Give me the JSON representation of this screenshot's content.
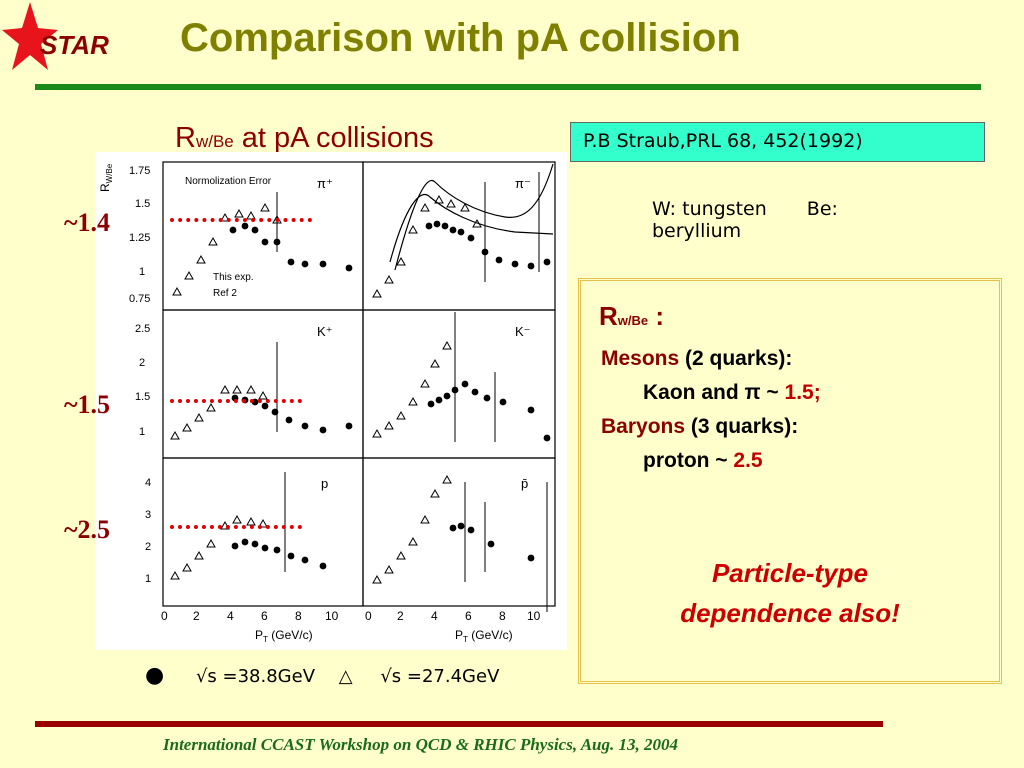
{
  "header": {
    "logo_text": "STAR",
    "title": "Comparison with pA collision"
  },
  "figure": {
    "caption_main": "R",
    "caption_sub": "w/Be",
    "caption_rest": " at pA collisions",
    "reference": "P.B Straub,PRL 68, 452(1992)",
    "ratio_labels": [
      "~1.4",
      "~1.5",
      "~2.5"
    ],
    "panel_labels": [
      "π⁺",
      "π⁻",
      "K⁺",
      "K⁻",
      "p",
      "p̄"
    ],
    "panel_legend": [
      "Normolization Error",
      "This exp.",
      "Ref 2"
    ],
    "y_axis_label": "R",
    "y_axis_sub": "W/Be",
    "x_axis_label": "P",
    "x_axis_sub": "T",
    "x_axis_unit": " (GeV/c)",
    "x_ticks": [
      "0",
      "2",
      "4",
      "6",
      "8",
      "10"
    ],
    "y_ticks_pi": [
      "0.75",
      "1",
      "1.25",
      "1.5",
      "1.75"
    ],
    "y_ticks_k": [
      "1",
      "1.5",
      "2",
      "2.5"
    ],
    "y_ticks_p": [
      "1",
      "2",
      "3",
      "4"
    ]
  },
  "elements_note": {
    "w": "W: tungsten",
    "be": "Be:",
    "be_name": "beryllium"
  },
  "legend": {
    "filled_marker": "●",
    "filled_label": "√s =38.8GeV",
    "open_marker": "△",
    "open_label": "√s =27.4GeV"
  },
  "summary": {
    "r_main": "R",
    "r_sub": "w/Be",
    "r_colon": " :",
    "mesons_word": "Mesons",
    "mesons_rest": " (2 quarks):",
    "kaon_text": "Kaon and π ~ ",
    "kaon_value": "1.5;",
    "baryons_word": "Baryons",
    "baryons_rest": " (3 quarks):",
    "proton_text": "proton ~ ",
    "proton_value": "2.5",
    "conclusion_line1": "Particle-type",
    "conclusion_line2": "dependence also!"
  },
  "footer": {
    "text": "International CCAST Workshop on QCD & RHIC Physics, Aug. 13, 2004"
  },
  "colors": {
    "background": "#ffffcc",
    "title": "#808000",
    "title_rule": "#1a8a1a",
    "accent_red": "#8b0000",
    "reference_box": "#33ffcc",
    "footer_rule": "#990000",
    "footer_text": "#1a6b1a"
  }
}
